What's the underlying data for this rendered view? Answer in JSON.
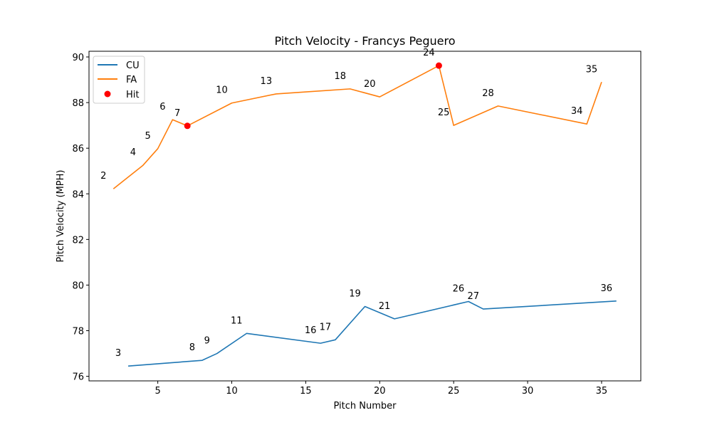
{
  "chart_data": {
    "type": "line",
    "title": "Pitch Velocity - Francys Peguero",
    "xlabel": "Pitch Number",
    "ylabel": "Pitch Velocity (MPH)",
    "xlim": [
      0.35,
      37.65
    ],
    "ylim": [
      75.8,
      90.25
    ],
    "xticks": [
      5,
      10,
      15,
      20,
      25,
      30,
      35
    ],
    "yticks": [
      76,
      78,
      80,
      82,
      84,
      86,
      88,
      90
    ],
    "legend_position": "top-left",
    "series": [
      {
        "name": "CU",
        "color": "#1f77b4",
        "points": [
          {
            "x": 3,
            "y": 76.45,
            "label": "3"
          },
          {
            "x": 8,
            "y": 76.7,
            "label": "8"
          },
          {
            "x": 9,
            "y": 77.0,
            "label": "9"
          },
          {
            "x": 11,
            "y": 77.88,
            "label": "11"
          },
          {
            "x": 16,
            "y": 77.45,
            "label": "16"
          },
          {
            "x": 17,
            "y": 77.6,
            "label": "17"
          },
          {
            "x": 19,
            "y": 79.06,
            "label": "19"
          },
          {
            "x": 21,
            "y": 78.52,
            "label": "21"
          },
          {
            "x": 26,
            "y": 79.28,
            "label": "26"
          },
          {
            "x": 27,
            "y": 78.95,
            "label": "27"
          },
          {
            "x": 36,
            "y": 79.3,
            "label": "36"
          }
        ]
      },
      {
        "name": "FA",
        "color": "#ff7f0e",
        "points": [
          {
            "x": 2,
            "y": 84.22,
            "label": "2"
          },
          {
            "x": 4,
            "y": 85.25,
            "label": "4"
          },
          {
            "x": 5,
            "y": 85.98,
            "label": "5"
          },
          {
            "x": 6,
            "y": 87.25,
            "label": "6"
          },
          {
            "x": 7,
            "y": 86.98,
            "label": "7"
          },
          {
            "x": 10,
            "y": 87.98,
            "label": "10"
          },
          {
            "x": 13,
            "y": 88.38,
            "label": "13"
          },
          {
            "x": 18,
            "y": 88.6,
            "label": "18"
          },
          {
            "x": 20,
            "y": 88.25,
            "label": "20"
          },
          {
            "x": 24,
            "y": 89.62,
            "label": "24"
          },
          {
            "x": 25,
            "y": 87.0,
            "label": "25"
          },
          {
            "x": 28,
            "y": 87.85,
            "label": "28"
          },
          {
            "x": 34,
            "y": 87.06,
            "label": "34"
          },
          {
            "x": 35,
            "y": 88.9,
            "label": "35"
          }
        ]
      }
    ],
    "hits": {
      "name": "Hit",
      "color": "#ff0000",
      "points": [
        {
          "x": 7,
          "y": 86.98
        },
        {
          "x": 24,
          "y": 89.62
        }
      ]
    }
  }
}
